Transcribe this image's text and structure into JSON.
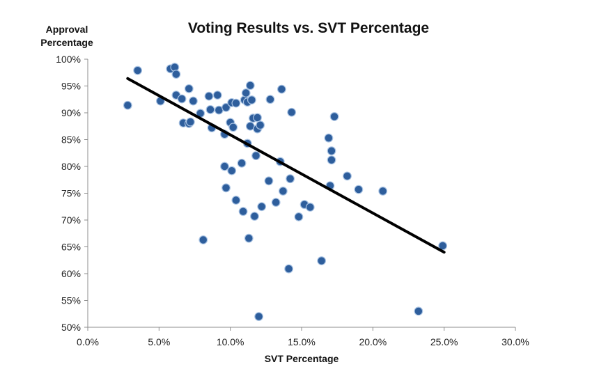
{
  "chart_data": {
    "type": "scatter",
    "title": "Voting Results vs. SVT Percentage",
    "xlabel": "SVT Percentage",
    "ylabel_lines": [
      "Approval",
      "Percentage"
    ],
    "xlim": [
      0.0,
      0.3
    ],
    "ylim": [
      0.5,
      1.0
    ],
    "x_ticks": [
      0.0,
      0.05,
      0.1,
      0.15,
      0.2,
      0.25,
      0.3
    ],
    "x_tick_labels": [
      "0.0%",
      "5.0%",
      "10.0%",
      "15.0%",
      "20.0%",
      "25.0%",
      "30.0%"
    ],
    "y_ticks": [
      0.5,
      0.55,
      0.6,
      0.65,
      0.7,
      0.75,
      0.8,
      0.85,
      0.9,
      0.95,
      1.0
    ],
    "y_tick_labels": [
      "50%",
      "55%",
      "60%",
      "65%",
      "70%",
      "75%",
      "80%",
      "85%",
      "90%",
      "95%",
      "100%"
    ],
    "grid": false,
    "legend": "none",
    "marker_color": "#2e5e9c",
    "marker_edge_color": "#a9c3e3",
    "trendline": {
      "type": "linear",
      "color": "#000000",
      "from": [
        0.028,
        0.964
      ],
      "to": [
        0.25,
        0.64
      ]
    },
    "points": [
      [
        0.028,
        0.914
      ],
      [
        0.035,
        0.979
      ],
      [
        0.051,
        0.922
      ],
      [
        0.058,
        0.982
      ],
      [
        0.061,
        0.985
      ],
      [
        0.062,
        0.972
      ],
      [
        0.062,
        0.933
      ],
      [
        0.066,
        0.926
      ],
      [
        0.067,
        0.881
      ],
      [
        0.071,
        0.945
      ],
      [
        0.071,
        0.88
      ],
      [
        0.072,
        0.883
      ],
      [
        0.074,
        0.922
      ],
      [
        0.079,
        0.899
      ],
      [
        0.081,
        0.663
      ],
      [
        0.085,
        0.931
      ],
      [
        0.086,
        0.906
      ],
      [
        0.087,
        0.872
      ],
      [
        0.091,
        0.933
      ],
      [
        0.092,
        0.905
      ],
      [
        0.096,
        0.86
      ],
      [
        0.096,
        0.8
      ],
      [
        0.097,
        0.91
      ],
      [
        0.097,
        0.76
      ],
      [
        0.1,
        0.882
      ],
      [
        0.101,
        0.919
      ],
      [
        0.101,
        0.792
      ],
      [
        0.102,
        0.873
      ],
      [
        0.104,
        0.918
      ],
      [
        0.104,
        0.737
      ],
      [
        0.108,
        0.806
      ],
      [
        0.109,
        0.716
      ],
      [
        0.11,
        0.924
      ],
      [
        0.111,
        0.937
      ],
      [
        0.112,
        0.92
      ],
      [
        0.112,
        0.843
      ],
      [
        0.113,
        0.666
      ],
      [
        0.114,
        0.951
      ],
      [
        0.114,
        0.875
      ],
      [
        0.115,
        0.924
      ],
      [
        0.116,
        0.89
      ],
      [
        0.117,
        0.707
      ],
      [
        0.118,
        0.82
      ],
      [
        0.119,
        0.891
      ],
      [
        0.119,
        0.87
      ],
      [
        0.12,
        0.52
      ],
      [
        0.121,
        0.877
      ],
      [
        0.122,
        0.725
      ],
      [
        0.127,
        0.773
      ],
      [
        0.128,
        0.925
      ],
      [
        0.132,
        0.733
      ],
      [
        0.135,
        0.809
      ],
      [
        0.136,
        0.944
      ],
      [
        0.137,
        0.754
      ],
      [
        0.141,
        0.609
      ],
      [
        0.142,
        0.777
      ],
      [
        0.143,
        0.901
      ],
      [
        0.148,
        0.706
      ],
      [
        0.152,
        0.729
      ],
      [
        0.156,
        0.724
      ],
      [
        0.164,
        0.624
      ],
      [
        0.169,
        0.853
      ],
      [
        0.17,
        0.764
      ],
      [
        0.171,
        0.829
      ],
      [
        0.171,
        0.812
      ],
      [
        0.173,
        0.893
      ],
      [
        0.182,
        0.782
      ],
      [
        0.19,
        0.757
      ],
      [
        0.207,
        0.754
      ],
      [
        0.232,
        0.53
      ],
      [
        0.249,
        0.652
      ]
    ]
  }
}
